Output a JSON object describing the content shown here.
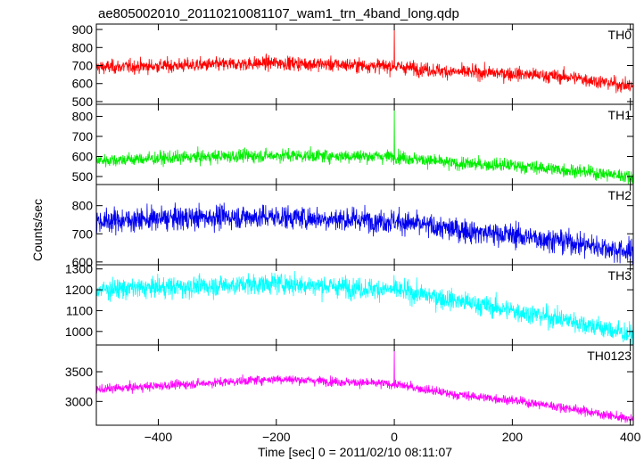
{
  "chart_data": {
    "type": "line",
    "title": "ae805002010_20110210081107_wam1_trn_4band_long.qdp",
    "xlabel": "Time [sec] 0 = 2011/02/10 08:11:07",
    "ylabel": "Counts/sec",
    "xlim": [
      -505,
      405
    ],
    "x_ticks": [
      -400,
      -200,
      0,
      200,
      400
    ],
    "x_tick_labels": [
      "−400",
      "−200",
      "0",
      "200",
      "400"
    ],
    "bin_seconds": 0.5,
    "panels": [
      {
        "label": "TH0",
        "color": "#ff0000",
        "ylim": [
          485,
          930
        ],
        "y_ticks": [
          500,
          600,
          700,
          800,
          900
        ],
        "trend": [
          [
            -505,
            690
          ],
          [
            -300,
            705
          ],
          [
            -200,
            715
          ],
          [
            0,
            695
          ],
          [
            100,
            665
          ],
          [
            200,
            655
          ],
          [
            300,
            635
          ],
          [
            400,
            585
          ]
        ],
        "noise": 35,
        "spike": {
          "x": 0,
          "y": 925
        }
      },
      {
        "label": "TH1",
        "color": "#00ee00",
        "ylim": [
          460,
          860
        ],
        "y_ticks": [
          500,
          600,
          700,
          800
        ],
        "trend": [
          [
            -505,
            580
          ],
          [
            -300,
            600
          ],
          [
            -200,
            605
          ],
          [
            0,
            600
          ],
          [
            100,
            565
          ],
          [
            200,
            555
          ],
          [
            300,
            530
          ],
          [
            400,
            500
          ]
        ],
        "noise": 30,
        "spike": {
          "x": 0,
          "y": 855
        }
      },
      {
        "label": "TH2",
        "color": "#0000ee",
        "ylim": [
          590,
          875
        ],
        "y_ticks": [
          600,
          700,
          800
        ],
        "trend": [
          [
            -505,
            745
          ],
          [
            -300,
            760
          ],
          [
            -200,
            760
          ],
          [
            0,
            745
          ],
          [
            100,
            715
          ],
          [
            200,
            695
          ],
          [
            300,
            670
          ],
          [
            400,
            635
          ]
        ],
        "noise": 38,
        "spike": null
      },
      {
        "label": "TH3",
        "color": "#00ffff",
        "ylim": [
          935,
          1320
        ],
        "y_ticks": [
          1000,
          1100,
          1200,
          1300
        ],
        "trend": [
          [
            -505,
            1200
          ],
          [
            -300,
            1220
          ],
          [
            -200,
            1230
          ],
          [
            0,
            1200
          ],
          [
            100,
            1150
          ],
          [
            200,
            1100
          ],
          [
            300,
            1050
          ],
          [
            400,
            985
          ]
        ],
        "noise": 45,
        "spike": null
      },
      {
        "label": "TH0123",
        "color": "#ff00ff",
        "ylim": [
          2600,
          3950
        ],
        "y_ticks": [
          3000,
          3500
        ],
        "trend": [
          [
            -505,
            3200
          ],
          [
            -300,
            3320
          ],
          [
            -200,
            3380
          ],
          [
            0,
            3290
          ],
          [
            100,
            3120
          ],
          [
            200,
            3020
          ],
          [
            300,
            2880
          ],
          [
            400,
            2700
          ]
        ],
        "noise": 70,
        "spike": {
          "x": 0,
          "y": 3900
        }
      }
    ]
  }
}
